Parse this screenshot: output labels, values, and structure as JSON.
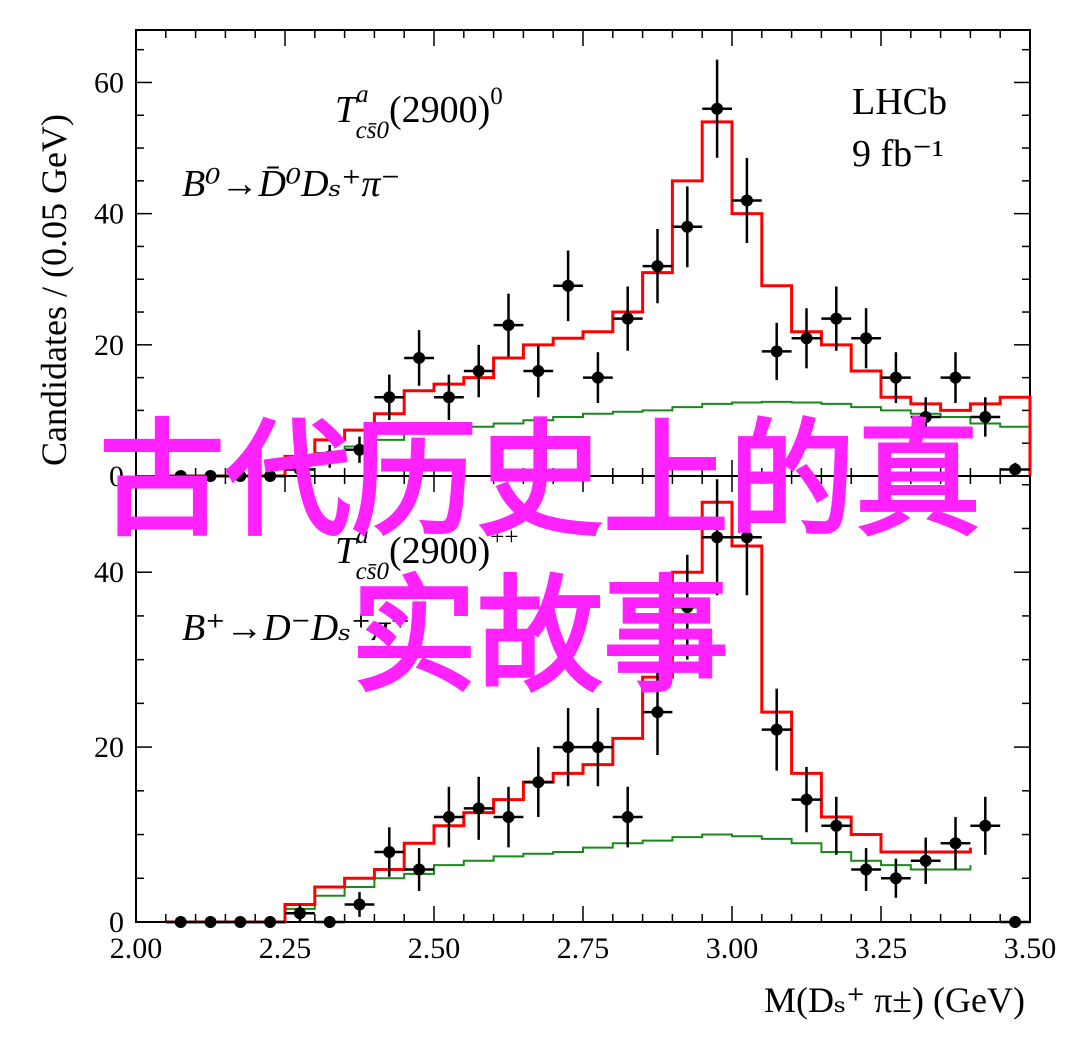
{
  "overlay": {
    "line1": "古代历史上的真",
    "line2": "实故事",
    "color": "#ff22ff"
  },
  "colors": {
    "total_fit": "#ff0000",
    "component": "#1a8a1a",
    "data": "#000000"
  },
  "chart_data": [
    {
      "type": "line",
      "panel": "top",
      "title_lines": [
        "LHCb",
        "9 fb⁻¹"
      ],
      "state_label": {
        "base": "T",
        "sup": "a",
        "sub": "cs̄0",
        "tail": "(2900)",
        "charge": "0"
      },
      "decay_label": "B⁰→D̄⁰Dₛ⁺π⁻",
      "ylabel": "Candidates / (0.05 GeV)",
      "ylim": [
        0,
        68
      ],
      "yticks": [
        "0",
        "20",
        "40",
        "60"
      ],
      "xlim": [
        2.0,
        3.5
      ],
      "data_points": {
        "x": [
          2.075,
          2.125,
          2.175,
          2.225,
          2.275,
          2.325,
          2.375,
          2.425,
          2.475,
          2.525,
          2.575,
          2.625,
          2.675,
          2.725,
          2.775,
          2.825,
          2.875,
          2.925,
          2.975,
          3.025,
          3.075,
          3.125,
          3.175,
          3.225,
          3.275,
          3.325,
          3.375,
          3.425,
          3.475
        ],
        "y": [
          0,
          0,
          0,
          0,
          1,
          3,
          4,
          12,
          18,
          12,
          16,
          23,
          16,
          29,
          15,
          24,
          32,
          38,
          56,
          42,
          19,
          21,
          24,
          21,
          15,
          9,
          15,
          9,
          1
        ]
      },
      "total_fit": {
        "edges": [
          2.05,
          2.25,
          2.3,
          2.35,
          2.4,
          2.45,
          2.5,
          2.55,
          2.6,
          2.65,
          2.7,
          2.75,
          2.8,
          2.85,
          2.9,
          2.95,
          3.0,
          3.05,
          3.1,
          3.15,
          3.2,
          3.25,
          3.3,
          3.35,
          3.4,
          3.45,
          3.5
        ],
        "values": [
          0,
          3,
          5.5,
          7,
          9.5,
          13,
          14,
          15,
          18,
          20,
          21,
          22,
          25,
          31,
          45,
          54,
          40,
          29,
          22,
          20,
          16,
          12,
          11,
          10,
          11,
          12
        ]
      },
      "component": {
        "edges": [
          2.05,
          2.25,
          2.3,
          2.35,
          2.4,
          2.45,
          2.5,
          2.55,
          2.6,
          2.65,
          2.7,
          2.75,
          2.8,
          2.85,
          2.9,
          2.95,
          3.0,
          3.05,
          3.1,
          3.15,
          3.2,
          3.25,
          3.3,
          3.35,
          3.4,
          3.45,
          3.5
        ],
        "values": [
          0,
          2.5,
          3.5,
          4.5,
          5.5,
          6.5,
          7,
          7.5,
          8,
          8.5,
          9,
          9.5,
          9.8,
          10,
          10.5,
          11,
          11.2,
          11.3,
          11.2,
          11,
          10.5,
          10,
          9.5,
          9,
          8,
          7.5
        ]
      }
    },
    {
      "type": "line",
      "panel": "bottom",
      "state_label": {
        "base": "T",
        "sup": "a",
        "sub": "cs̄0",
        "tail": "(2900)",
        "charge": "++"
      },
      "decay_label": "B⁺→D⁻Dₛ⁺π⁺",
      "ylim": [
        0,
        51
      ],
      "yticks": [
        "0",
        "20",
        "40"
      ],
      "xlim": [
        2.0,
        3.5
      ],
      "xticks": [
        "2.00",
        "2.25",
        "2.50",
        "2.75",
        "3.00",
        "3.25",
        "3.50"
      ],
      "xlabel": "M(Dₛ⁺ π±) (GeV)",
      "data_points": {
        "x": [
          2.075,
          2.125,
          2.175,
          2.225,
          2.275,
          2.325,
          2.375,
          2.425,
          2.475,
          2.525,
          2.575,
          2.625,
          2.675,
          2.725,
          2.775,
          2.825,
          2.875,
          2.925,
          2.975,
          3.025,
          3.075,
          3.125,
          3.175,
          3.225,
          3.275,
          3.325,
          3.375,
          3.425,
          3.475
        ],
        "y": [
          0,
          0,
          0,
          0,
          1,
          0,
          2,
          8,
          6,
          12,
          13,
          12,
          16,
          20,
          20,
          12,
          24,
          36,
          44,
          44,
          22,
          14,
          11,
          6,
          5,
          7,
          9,
          11,
          0
        ]
      },
      "total_fit": {
        "edges": [
          2.05,
          2.25,
          2.3,
          2.35,
          2.4,
          2.45,
          2.5,
          2.55,
          2.6,
          2.65,
          2.7,
          2.75,
          2.8,
          2.85,
          2.9,
          2.95,
          3.0,
          3.05,
          3.1,
          3.15,
          3.2,
          3.25,
          3.3,
          3.35,
          3.4
        ],
        "values": [
          0,
          2,
          4,
          5,
          6,
          9,
          11,
          12.5,
          14,
          16,
          17,
          18,
          21,
          28,
          40,
          48,
          43,
          24,
          17,
          12,
          10,
          8,
          8,
          8,
          8.5
        ]
      },
      "component": {
        "edges": [
          2.05,
          2.25,
          2.3,
          2.35,
          2.4,
          2.45,
          2.5,
          2.55,
          2.6,
          2.65,
          2.7,
          2.75,
          2.8,
          2.85,
          2.9,
          2.95,
          3.0,
          3.05,
          3.1,
          3.15,
          3.2,
          3.25,
          3.3,
          3.35,
          3.4
        ],
        "values": [
          0,
          1.5,
          3,
          4,
          5,
          5.5,
          6.5,
          7,
          7.5,
          7.8,
          8,
          8.5,
          9,
          9.3,
          9.7,
          10,
          9.8,
          9.5,
          9,
          8,
          7,
          6.5,
          6,
          6,
          6.5
        ]
      }
    }
  ]
}
